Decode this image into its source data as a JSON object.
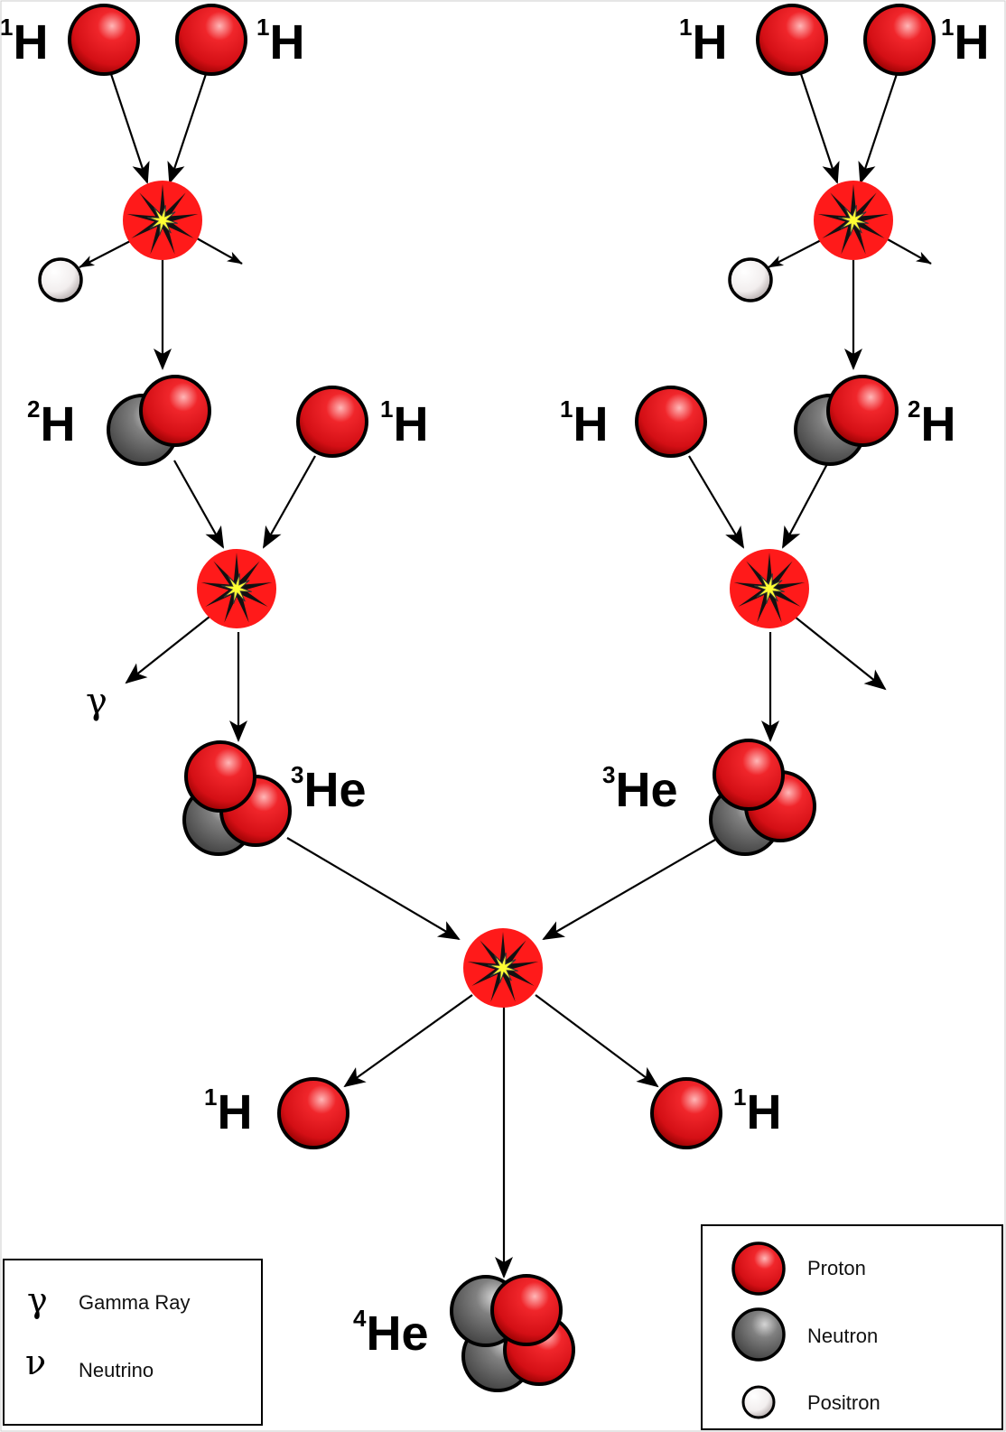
{
  "colors": {
    "proton": "#e8141b",
    "neutron": "#6b6b6b",
    "positron": "#ffffff",
    "reaction_burst": "#ff1a1a",
    "reaction_star": "#ffff33",
    "arrow": "#000000"
  },
  "labels": {
    "h1": {
      "mass": "1",
      "symbol": "H"
    },
    "h2": {
      "mass": "2",
      "symbol": "H"
    },
    "he3": {
      "mass": "3",
      "symbol": "He"
    },
    "he4": {
      "mass": "4",
      "symbol": "He"
    },
    "gamma": "γ"
  },
  "legend_left": {
    "items": [
      {
        "symbol": "γ",
        "label": "Gamma Ray"
      },
      {
        "symbol": "ν",
        "label": "Neutrino"
      }
    ]
  },
  "legend_right": {
    "items": [
      {
        "icon": "proton",
        "label": "Proton"
      },
      {
        "icon": "neutron",
        "label": "Neutron"
      },
      {
        "icon": "positron",
        "label": "Positron"
      }
    ]
  }
}
